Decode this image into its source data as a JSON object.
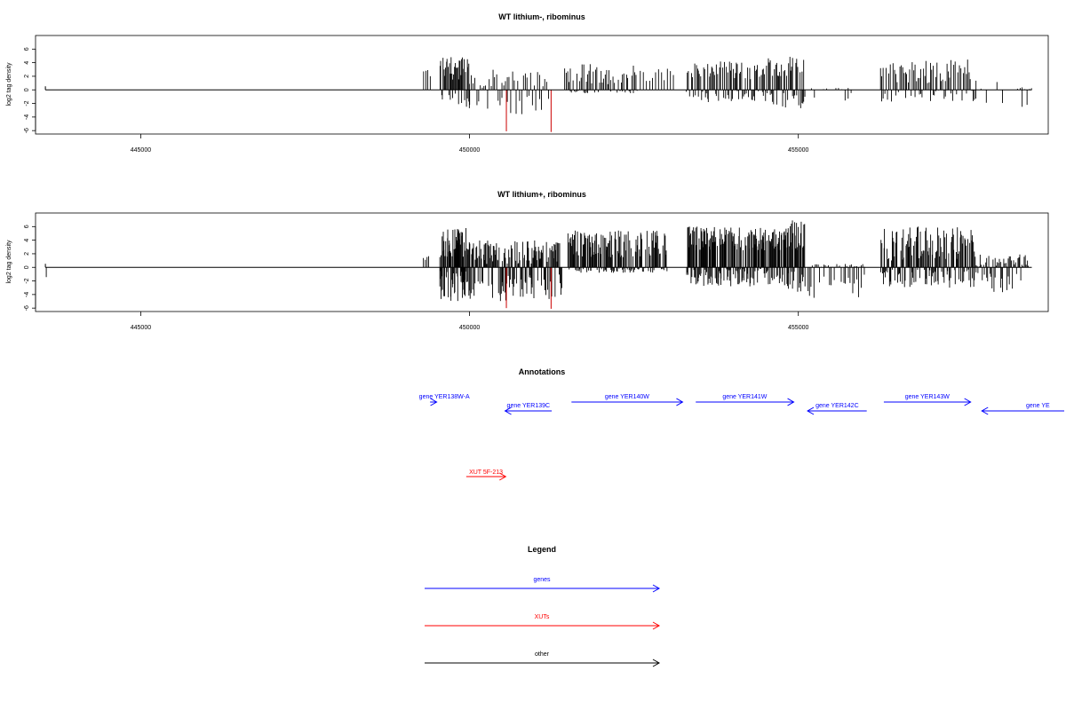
{
  "chart_data": [
    {
      "type": "bar",
      "title": "WT lithium-, ribominus",
      "ylabel": "log2 tag density",
      "xlabel": "",
      "xlim": [
        443400,
        458800
      ],
      "ylim": [
        -6.5,
        8
      ],
      "xticks": [
        445000,
        450000,
        455000
      ],
      "xtick_labels": [
        "445000",
        "450000",
        "455000"
      ],
      "yticks": [
        6,
        4,
        2,
        0,
        -2,
        -4,
        -6
      ],
      "ytick_labels": [
        "6",
        "4",
        "2",
        "0",
        "-2",
        "-4",
        "-6"
      ],
      "baseline": {
        "x_start": 443550,
        "x_end": 458550
      },
      "series": [
        {
          "color": "#000000",
          "segments": [
            {
              "x0": 449300,
              "x1": 449400,
              "n": 4,
              "pos": [
                1.2,
                3.6
              ],
              "neg": [
                0,
                0
              ]
            },
            {
              "x0": 449550,
              "x1": 450000,
              "n": 38,
              "pos": [
                1.5,
                5.0
              ],
              "neg": [
                0.5,
                3.0
              ]
            },
            {
              "x0": 450000,
              "x1": 451200,
              "n": 45,
              "pos": [
                0.3,
                3.0
              ],
              "neg": [
                0.8,
                3.6
              ]
            },
            {
              "x0": 451450,
              "x1": 452550,
              "n": 55,
              "pos": [
                0.8,
                3.8
              ],
              "neg": [
                0,
                0.5
              ]
            },
            {
              "x0": 452600,
              "x1": 453100,
              "n": 12,
              "pos": [
                0.8,
                3.2
              ],
              "neg": [
                0,
                0
              ]
            },
            {
              "x0": 453300,
              "x1": 454500,
              "n": 80,
              "pos": [
                1.5,
                4.2
              ],
              "neg": [
                0,
                1.8
              ]
            },
            {
              "x0": 454500,
              "x1": 455100,
              "n": 40,
              "pos": [
                2.0,
                5.0
              ],
              "neg": [
                0.3,
                2.8
              ]
            },
            {
              "x0": 455150,
              "x1": 455800,
              "n": 15,
              "pos": [
                0,
                0.3
              ],
              "neg": [
                0.4,
                1.6
              ]
            },
            {
              "x0": 456250,
              "x1": 457700,
              "n": 70,
              "pos": [
                1.0,
                4.6
              ],
              "neg": [
                0,
                1.8
              ]
            },
            {
              "x0": 457700,
              "x1": 458100,
              "n": 6,
              "pos": [
                0,
                1.2
              ],
              "neg": [
                0.8,
                2.9
              ]
            },
            {
              "x0": 458300,
              "x1": 458550,
              "n": 8,
              "pos": [
                0,
                0.4
              ],
              "neg": [
                0.4,
                3.0
              ]
            }
          ]
        },
        {
          "color": "#cc0000",
          "bars": [
            {
              "x": 450560,
              "y": -6.1
            },
            {
              "x": 451240,
              "y": -6.2
            }
          ]
        }
      ]
    },
    {
      "type": "bar",
      "title": "WT lithium+, ribominus",
      "ylabel": "log2 tag density",
      "xlabel": "",
      "xlim": [
        443400,
        458800
      ],
      "ylim": [
        -6.5,
        8
      ],
      "xticks": [
        445000,
        450000,
        455000
      ],
      "xtick_labels": [
        "445000",
        "450000",
        "455000"
      ],
      "yticks": [
        6,
        4,
        2,
        0,
        -2,
        -4,
        -6
      ],
      "ytick_labels": [
        "6",
        "4",
        "2",
        "0",
        "-2",
        "-4",
        "-6"
      ],
      "baseline": {
        "x_start": 443550,
        "x_end": 458550
      },
      "series": [
        {
          "color": "#000000",
          "segments": [
            {
              "x0": 443550,
              "x1": 443580,
              "n": 1,
              "pos": [
                0,
                0
              ],
              "neg": [
                1.4,
                1.6
              ]
            },
            {
              "x0": 449300,
              "x1": 449380,
              "n": 4,
              "pos": [
                1.0,
                1.8
              ],
              "neg": [
                0,
                0
              ]
            },
            {
              "x0": 449550,
              "x1": 450000,
              "n": 80,
              "pos": [
                1.5,
                5.8
              ],
              "neg": [
                0.5,
                5.0
              ]
            },
            {
              "x0": 450000,
              "x1": 451400,
              "n": 140,
              "pos": [
                0.5,
                4.0
              ],
              "neg": [
                1.0,
                5.0
              ]
            },
            {
              "x0": 451500,
              "x1": 453000,
              "n": 160,
              "pos": [
                1.5,
                5.5
              ],
              "neg": [
                0,
                0.8
              ]
            },
            {
              "x0": 453300,
              "x1": 454800,
              "n": 200,
              "pos": [
                2.5,
                6.0
              ],
              "neg": [
                0.2,
                2.8
              ]
            },
            {
              "x0": 454800,
              "x1": 455100,
              "n": 40,
              "pos": [
                2.5,
                7.2
              ],
              "neg": [
                0.5,
                3.6
              ]
            },
            {
              "x0": 455150,
              "x1": 456000,
              "n": 40,
              "pos": [
                0,
                0.5
              ],
              "neg": [
                0.8,
                4.6
              ]
            },
            {
              "x0": 456250,
              "x1": 457700,
              "n": 140,
              "pos": [
                1.0,
                6.0
              ],
              "neg": [
                0.2,
                3.0
              ]
            },
            {
              "x0": 457700,
              "x1": 458500,
              "n": 50,
              "pos": [
                0,
                2.0
              ],
              "neg": [
                0.8,
                3.8
              ]
            }
          ]
        },
        {
          "color": "#cc0000",
          "bars": [
            {
              "x": 450560,
              "y": -6.0
            },
            {
              "x": 451240,
              "y": -6.1
            }
          ]
        }
      ]
    }
  ],
  "annotations": {
    "title": "Annotations",
    "genes": [
      {
        "label": "gene YER138W-A",
        "start": 449400,
        "end": 449500,
        "strand": "+",
        "row": 0
      },
      {
        "label": "gene YER139C",
        "start": 450540,
        "end": 451250,
        "strand": "-",
        "row": 1
      },
      {
        "label": "gene YER140W",
        "start": 451550,
        "end": 453240,
        "strand": "+",
        "row": 0
      },
      {
        "label": "gene YER141W",
        "start": 453440,
        "end": 454930,
        "strand": "+",
        "row": 0
      },
      {
        "label": "gene YER142C",
        "start": 455140,
        "end": 456040,
        "strand": "-",
        "row": 1
      },
      {
        "label": "gene YER143W",
        "start": 456300,
        "end": 457620,
        "strand": "+",
        "row": 0
      },
      {
        "label": "gene YE",
        "start": 457790,
        "end": 460000,
        "strand": "-",
        "row": 1
      }
    ],
    "xuts": [
      {
        "label": "XUT 5F-213",
        "start": 449950,
        "end": 450550,
        "strand": "+"
      }
    ]
  },
  "legend": {
    "title": "Legend",
    "items": [
      {
        "label": "genes",
        "color": "#0000ff"
      },
      {
        "label": "XUTs",
        "color": "#ff0000"
      },
      {
        "label": "other",
        "color": "#000000"
      }
    ]
  }
}
